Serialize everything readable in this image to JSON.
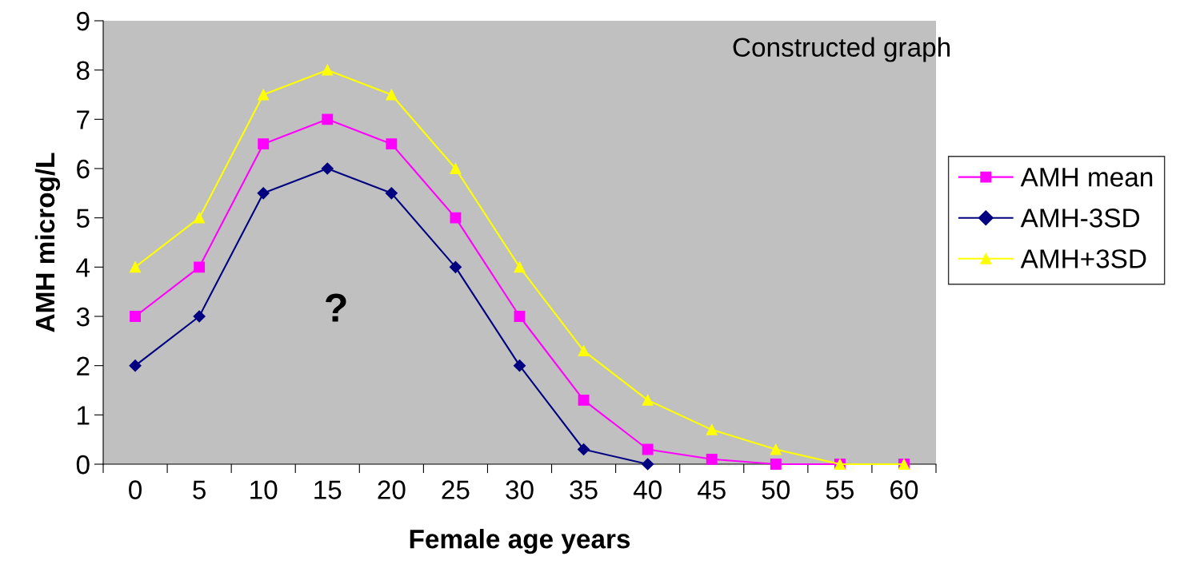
{
  "chart_data": {
    "type": "line",
    "xlabel": "Female age years",
    "ylabel": "AMH microg/L",
    "categories": [
      "0",
      "5",
      "10",
      "15",
      "20",
      "25",
      "30",
      "35",
      "40",
      "45",
      "50",
      "55",
      "60"
    ],
    "series": [
      {
        "name": "AMH mean",
        "color": "#ff00ff",
        "marker": "square",
        "values": [
          3,
          4,
          6.5,
          7,
          6.5,
          5,
          3,
          1.3,
          0.3,
          0.1,
          0,
          0,
          0
        ]
      },
      {
        "name": "AMH-3SD",
        "color": "#000080",
        "marker": "diamond",
        "values": [
          2,
          3,
          5.5,
          6,
          5.5,
          4,
          2,
          0.3,
          0,
          null,
          null,
          null,
          null
        ]
      },
      {
        "name": "AMH+3SD",
        "color": "#ffff00",
        "marker": "triangle",
        "values": [
          4,
          5,
          7.5,
          8,
          7.5,
          6,
          4,
          2.3,
          1.3,
          0.7,
          0.3,
          0,
          0
        ]
      }
    ],
    "ylim": [
      0,
      9
    ],
    "yticks": [
      0,
      1,
      2,
      3,
      4,
      5,
      6,
      7,
      8,
      9
    ],
    "grid": false,
    "legend": "right",
    "line_style": "solid",
    "annotations": [
      "Constructed graph",
      "?"
    ]
  }
}
